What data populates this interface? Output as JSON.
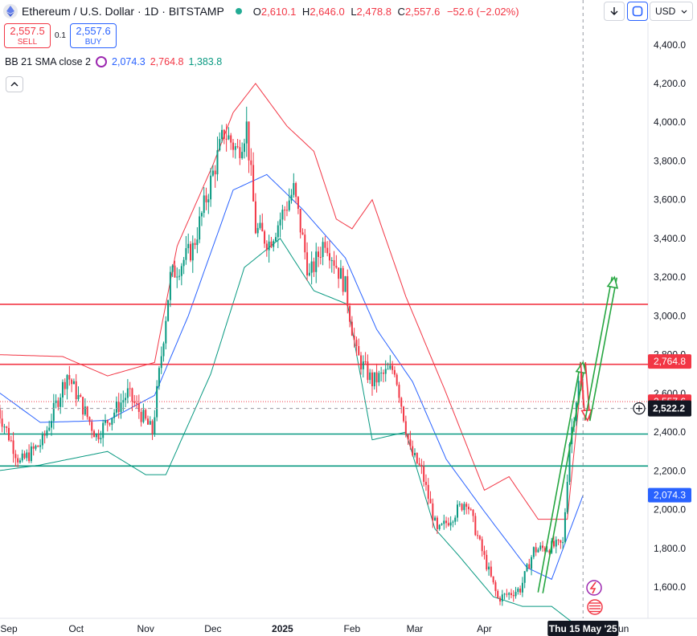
{
  "header": {
    "symbol_title": "Ethereum / U.S. Dollar · 1D · BITSTAMP",
    "ohlc": {
      "o_key": "O",
      "o": "2,610.1",
      "h_key": "H",
      "h": "2,646.0",
      "l_key": "L",
      "l": "2,478.8",
      "c_key": "C",
      "c": "2,557.6",
      "change": "−52.6 (−2.02%)"
    },
    "down_icon": "arrow-down-icon",
    "sync_icon": "sync-icon",
    "currency": "USD",
    "currency_icon": "chevron-down-icon"
  },
  "trade": {
    "sell_price": "2,557.5",
    "sell_label": "SELL",
    "spread": "0.1",
    "buy_price": "2,557.6",
    "buy_label": "BUY"
  },
  "indicator": {
    "name": "BB 21 SMA close 2",
    "basis": "2,074.3",
    "upper": "2,764.8",
    "lower": "1,383.8"
  },
  "colors": {
    "up": "#089981",
    "down": "#f23645",
    "basis": "#2962ff",
    "upper_band": "#f23645",
    "lower_band": "#089981",
    "resistance": "#f23645",
    "support": "#089981",
    "arrow_up": "#26a641",
    "arrow_down": "#f23645"
  },
  "chart_data": {
    "type": "candlestick",
    "xlabel": "",
    "ylabel": "",
    "ylim": [
      1460,
      4520
    ],
    "y_ticks": [
      "4,400.0",
      "4,200.0",
      "4,000.0",
      "3,800.0",
      "3,600.0",
      "3,400.0",
      "3,200.0",
      "3,000.0",
      "2,800.0",
      "2,600.0",
      "2,400.0",
      "2,200.0",
      "2,000.0",
      "1,800.0",
      "1,600.0"
    ],
    "y_tick_values": [
      4400,
      4200,
      4000,
      3800,
      3600,
      3400,
      3200,
      3000,
      2800,
      2600,
      2400,
      2200,
      2000,
      1800,
      1600
    ],
    "x_ticks": [
      "Sep",
      "Oct",
      "Nov",
      "Dec",
      "2025",
      "Feb",
      "Mar",
      "Apr",
      "Jun"
    ],
    "x_tick_dates": [
      "2024-09-01",
      "2024-10-01",
      "2024-11-01",
      "2024-12-01",
      "2025-01-01",
      "2025-02-01",
      "2025-03-01",
      "2025-04-01",
      "2025-06-01"
    ],
    "crosshair_date_label": "Thu 15 May '25",
    "crosshair_price_label": "2,522.2",
    "crosshair_price": 2522.2,
    "price_labels": [
      {
        "value": 2764.8,
        "text": "2,764.8",
        "color": "#f23645"
      },
      {
        "value": 2557.6,
        "text": "2,557.6",
        "color": "#f23645"
      },
      {
        "value": 2074.3,
        "text": "2,074.3",
        "color": "#2962ff"
      }
    ],
    "horizontal_levels": [
      {
        "value": 3060,
        "color": "#f23645"
      },
      {
        "value": 2750,
        "color": "#f23645"
      },
      {
        "value": 2390,
        "color": "#089981"
      },
      {
        "value": 2225,
        "color": "#089981"
      }
    ],
    "current_price_line": 2557.6,
    "price_path_keypoints": [
      [
        "2024-08-27",
        2520
      ],
      [
        "2024-09-06",
        2240
      ],
      [
        "2024-09-16",
        2350
      ],
      [
        "2024-09-27",
        2700
      ],
      [
        "2024-10-10",
        2380
      ],
      [
        "2024-10-24",
        2600
      ],
      [
        "2024-11-04",
        2400
      ],
      [
        "2024-11-12",
        3200
      ],
      [
        "2024-11-22",
        3350
      ],
      [
        "2024-12-06",
        3950
      ],
      [
        "2024-12-12",
        3850
      ],
      [
        "2024-12-16",
        3980
      ],
      [
        "2024-12-20",
        3450
      ],
      [
        "2024-12-26",
        3380
      ],
      [
        "2025-01-06",
        3650
      ],
      [
        "2025-01-13",
        3200
      ],
      [
        "2025-01-20",
        3400
      ],
      [
        "2025-01-29",
        3150
      ],
      [
        "2025-02-03",
        2800
      ],
      [
        "2025-02-10",
        2660
      ],
      [
        "2025-02-20",
        2730
      ],
      [
        "2025-02-27",
        2300
      ],
      [
        "2025-03-04",
        2200
      ],
      [
        "2025-03-11",
        1880
      ],
      [
        "2025-03-24",
        2050
      ],
      [
        "2025-03-30",
        1820
      ],
      [
        "2025-04-07",
        1540
      ],
      [
        "2025-04-17",
        1590
      ],
      [
        "2025-04-23",
        1790
      ],
      [
        "2025-05-06",
        1820
      ],
      [
        "2025-05-09",
        2350
      ],
      [
        "2025-05-13",
        2650
      ],
      [
        "2025-05-15",
        2557
      ]
    ],
    "bollinger_keypoints": {
      "basis": [
        [
          "2024-08-27",
          2610
        ],
        [
          "2024-09-15",
          2450
        ],
        [
          "2024-10-15",
          2460
        ],
        [
          "2024-11-05",
          2590
        ],
        [
          "2024-11-20",
          3000
        ],
        [
          "2024-12-10",
          3650
        ],
        [
          "2024-12-25",
          3730
        ],
        [
          "2025-01-10",
          3550
        ],
        [
          "2025-01-29",
          3300
        ],
        [
          "2025-02-12",
          2930
        ],
        [
          "2025-02-28",
          2660
        ],
        [
          "2025-03-15",
          2260
        ],
        [
          "2025-04-01",
          1990
        ],
        [
          "2025-04-20",
          1700
        ],
        [
          "2025-05-01",
          1640
        ],
        [
          "2025-05-15",
          2074
        ]
      ],
      "upper": [
        [
          "2024-08-27",
          2800
        ],
        [
          "2024-09-25",
          2790
        ],
        [
          "2024-10-15",
          2690
        ],
        [
          "2024-11-05",
          2760
        ],
        [
          "2024-11-15",
          3360
        ],
        [
          "2024-12-01",
          3780
        ],
        [
          "2024-12-10",
          4050
        ],
        [
          "2024-12-20",
          4200
        ],
        [
          "2025-01-03",
          3980
        ],
        [
          "2025-01-15",
          3850
        ],
        [
          "2025-01-25",
          3500
        ],
        [
          "2025-02-01",
          3450
        ],
        [
          "2025-02-10",
          3600
        ],
        [
          "2025-02-25",
          3100
        ],
        [
          "2025-03-15",
          2600
        ],
        [
          "2025-04-01",
          2100
        ],
        [
          "2025-04-12",
          2170
        ],
        [
          "2025-04-25",
          1950
        ],
        [
          "2025-05-08",
          1950
        ],
        [
          "2025-05-15",
          2765
        ]
      ],
      "lower": [
        [
          "2024-08-27",
          2200
        ],
        [
          "2024-09-15",
          2230
        ],
        [
          "2024-10-15",
          2300
        ],
        [
          "2024-11-01",
          2180
        ],
        [
          "2024-11-10",
          2180
        ],
        [
          "2024-11-30",
          2700
        ],
        [
          "2024-12-15",
          3250
        ],
        [
          "2024-12-31",
          3400
        ],
        [
          "2025-01-15",
          3130
        ],
        [
          "2025-01-30",
          3060
        ],
        [
          "2025-02-10",
          2360
        ],
        [
          "2025-02-25",
          2400
        ],
        [
          "2025-03-10",
          1900
        ],
        [
          "2025-03-20",
          1770
        ],
        [
          "2025-04-05",
          1550
        ],
        [
          "2025-04-18",
          1500
        ],
        [
          "2025-05-01",
          1500
        ],
        [
          "2025-05-10",
          1420
        ],
        [
          "2025-05-15",
          1384
        ]
      ]
    },
    "projection_arrows": [
      {
        "color": "#26a641",
        "points": [
          [
            "2025-04-26",
            1570
          ],
          [
            "2025-05-15",
            2760
          ]
        ]
      },
      {
        "color": "#f23645",
        "points": [
          [
            "2025-05-15",
            2760
          ],
          [
            "2025-05-17",
            2460
          ]
        ]
      },
      {
        "color": "#26a641",
        "points": [
          [
            "2025-05-17",
            2460
          ],
          [
            "2025-05-29",
            3200
          ]
        ]
      }
    ]
  }
}
